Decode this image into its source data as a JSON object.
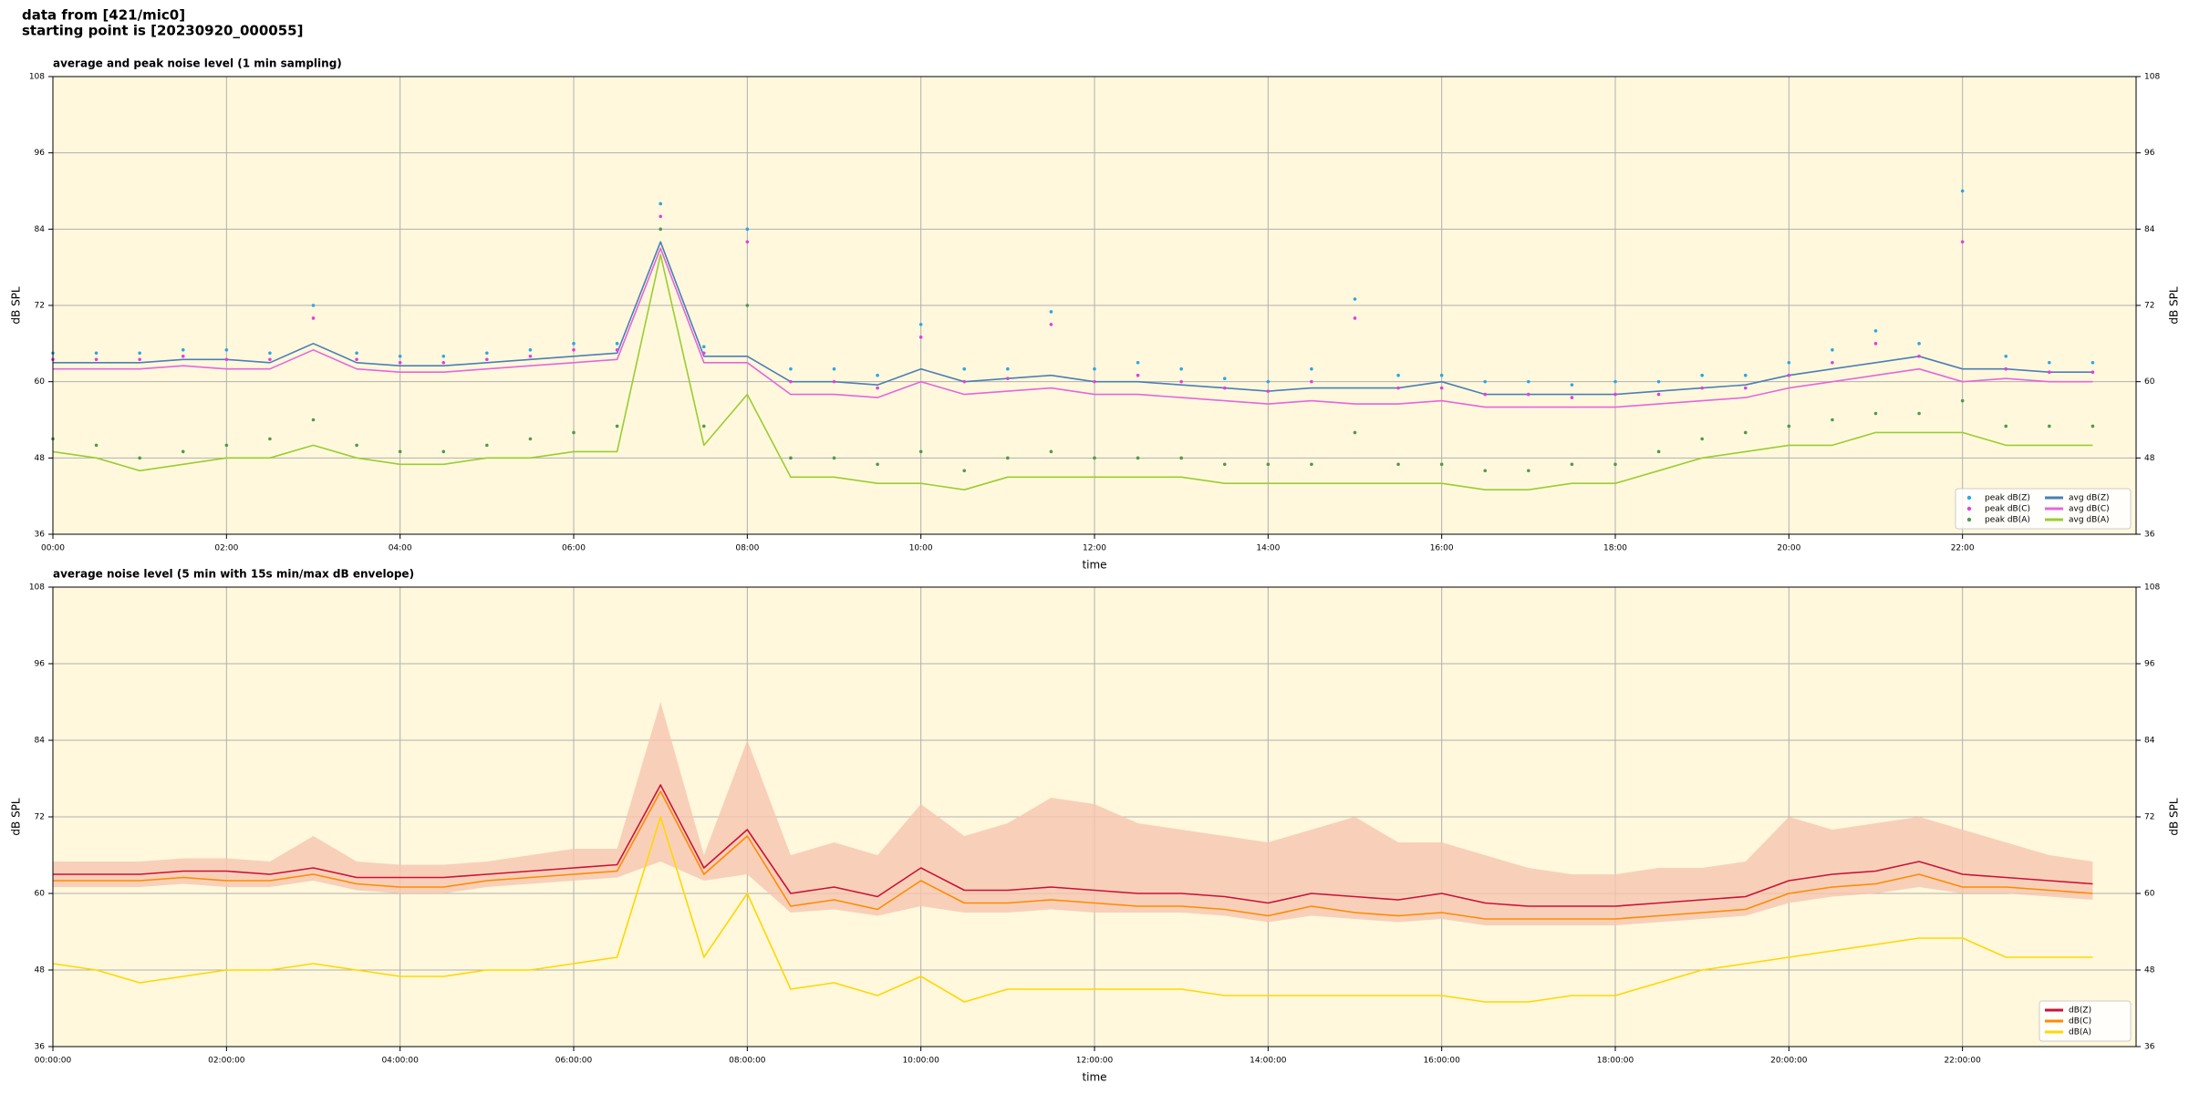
{
  "header": {
    "line1": "data from [421/mic0]",
    "line2": "starting point is [20230920_000055]"
  },
  "chart_data": [
    {
      "type": "line",
      "title": "average and peak noise level (1 min sampling)",
      "xlabel": "time",
      "ylabel": "dB SPL",
      "x": [
        0,
        0.5,
        1,
        1.5,
        2,
        2.5,
        3,
        3.5,
        4,
        4.5,
        5,
        5.5,
        6,
        6.5,
        7,
        7.5,
        8,
        8.5,
        9,
        9.5,
        10,
        10.5,
        11,
        11.5,
        12,
        12.5,
        13,
        13.5,
        14,
        14.5,
        15,
        15.5,
        16,
        16.5,
        17,
        17.5,
        18,
        18.5,
        19,
        19.5,
        20,
        20.5,
        21,
        21.5,
        22,
        22.5,
        23,
        23.5
      ],
      "xlim": [
        0,
        24
      ],
      "xticks": [
        {
          "value": 0,
          "label": "00:00"
        },
        {
          "value": 2,
          "label": "02:00"
        },
        {
          "value": 4,
          "label": "04:00"
        },
        {
          "value": 6,
          "label": "06:00"
        },
        {
          "value": 8,
          "label": "08:00"
        },
        {
          "value": 10,
          "label": "10:00"
        },
        {
          "value": 12,
          "label": "12:00"
        },
        {
          "value": 14,
          "label": "14:00"
        },
        {
          "value": 16,
          "label": "16:00"
        },
        {
          "value": 18,
          "label": "18:00"
        },
        {
          "value": 20,
          "label": "20:00"
        },
        {
          "value": 22,
          "label": "22:00"
        }
      ],
      "ylim": [
        36,
        108
      ],
      "yticks": [
        36,
        48,
        60,
        72,
        84,
        96,
        108
      ],
      "grid": true,
      "legend": "lower right",
      "legend_columns": 2,
      "series": [
        {
          "name": "peak dB(Z)",
          "color": "#2aa7e6",
          "mark": "point",
          "values": [
            64.5,
            64.5,
            64.5,
            65,
            65,
            64.5,
            72,
            64.5,
            64,
            64,
            64.5,
            65,
            66,
            66,
            88,
            65.5,
            84,
            62,
            62,
            61,
            69,
            62,
            62,
            71,
            62,
            63,
            62,
            60.5,
            60,
            62,
            73,
            61,
            61,
            60,
            60,
            59.5,
            60,
            60,
            61,
            61,
            63,
            65,
            68,
            66,
            90,
            64,
            63,
            63
          ]
        },
        {
          "name": "peak dB(C)",
          "color": "#e040e0",
          "mark": "point",
          "values": [
            63.5,
            63.5,
            63.5,
            64,
            63.5,
            63.5,
            70,
            63.5,
            63,
            63,
            63.5,
            64,
            65,
            65,
            86,
            64.5,
            82,
            60,
            60,
            59,
            67,
            60,
            60.5,
            69,
            60,
            61,
            60,
            59,
            58.5,
            60,
            70,
            59,
            59,
            58,
            58,
            57.5,
            58,
            58,
            59,
            59,
            61,
            63,
            66,
            64,
            82,
            62,
            61.5,
            61.5
          ]
        },
        {
          "name": "peak dB(A)",
          "color": "#4f9a4f",
          "mark": "point",
          "values": [
            51,
            50,
            48,
            49,
            50,
            51,
            54,
            50,
            49,
            49,
            50,
            51,
            52,
            53,
            84,
            53,
            72,
            48,
            48,
            47,
            49,
            46,
            48,
            49,
            48,
            48,
            48,
            47,
            47,
            47,
            52,
            47,
            47,
            46,
            46,
            47,
            47,
            49,
            51,
            52,
            53,
            54,
            55,
            55,
            57,
            53,
            53,
            53
          ]
        },
        {
          "name": "avg dB(Z)",
          "color": "#4a7fb5",
          "mark": "line",
          "values": [
            63,
            63,
            63,
            63.5,
            63.5,
            63,
            66,
            63,
            62.5,
            62.5,
            63,
            63.5,
            64,
            64.5,
            82,
            64,
            64,
            60,
            60,
            59.5,
            62,
            60,
            60.5,
            61,
            60,
            60,
            59.5,
            59,
            58.5,
            59,
            59,
            59,
            60,
            58,
            58,
            58,
            58,
            58.5,
            59,
            59.5,
            61,
            62,
            63,
            64,
            62,
            62,
            61.5,
            61.5
          ]
        },
        {
          "name": "avg dB(C)",
          "color": "#e466dc",
          "mark": "line",
          "values": [
            62,
            62,
            62,
            62.5,
            62,
            62,
            65,
            62,
            61.5,
            61.5,
            62,
            62.5,
            63,
            63.5,
            81,
            63,
            63,
            58,
            58,
            57.5,
            60,
            58,
            58.5,
            59,
            58,
            58,
            57.5,
            57,
            56.5,
            57,
            56.5,
            56.5,
            57,
            56,
            56,
            56,
            56,
            56.5,
            57,
            57.5,
            59,
            60,
            61,
            62,
            60,
            60.5,
            60,
            60
          ]
        },
        {
          "name": "avg dB(A)",
          "color": "#9acd32",
          "mark": "line",
          "values": [
            49,
            48,
            46,
            47,
            48,
            48,
            50,
            48,
            47,
            47,
            48,
            48,
            49,
            49,
            80,
            50,
            58,
            45,
            45,
            44,
            44,
            43,
            45,
            45,
            45,
            45,
            45,
            44,
            44,
            44,
            44,
            44,
            44,
            43,
            43,
            44,
            44,
            46,
            48,
            49,
            50,
            50,
            52,
            52,
            52,
            50,
            50,
            50
          ]
        }
      ]
    },
    {
      "type": "line",
      "title": "average noise level (5 min with 15s min/max dB envelope)",
      "xlabel": "time",
      "ylabel": "dB SPL",
      "x": [
        0,
        0.5,
        1,
        1.5,
        2,
        2.5,
        3,
        3.5,
        4,
        4.5,
        5,
        5.5,
        6,
        6.5,
        7,
        7.5,
        8,
        8.5,
        9,
        9.5,
        10,
        10.5,
        11,
        11.5,
        12,
        12.5,
        13,
        13.5,
        14,
        14.5,
        15,
        15.5,
        16,
        16.5,
        17,
        17.5,
        18,
        18.5,
        19,
        19.5,
        20,
        20.5,
        21,
        21.5,
        22,
        22.5,
        23,
        23.5
      ],
      "xlim": [
        0,
        24
      ],
      "xticks": [
        {
          "value": 0,
          "label": "00:00:00"
        },
        {
          "value": 2,
          "label": "02:00:00"
        },
        {
          "value": 4,
          "label": "04:00:00"
        },
        {
          "value": 6,
          "label": "06:00:00"
        },
        {
          "value": 8,
          "label": "08:00:00"
        },
        {
          "value": 10,
          "label": "10:00:00"
        },
        {
          "value": 12,
          "label": "12:00:00"
        },
        {
          "value": 14,
          "label": "14:00:00"
        },
        {
          "value": 16,
          "label": "16:00:00"
        },
        {
          "value": 18,
          "label": "18:00:00"
        },
        {
          "value": 20,
          "label": "20:00:00"
        },
        {
          "value": 22,
          "label": "22:00:00"
        }
      ],
      "ylim": [
        36,
        108
      ],
      "yticks": [
        36,
        48,
        60,
        72,
        84,
        96,
        108
      ],
      "grid": true,
      "legend": "lower right",
      "legend_columns": 1,
      "envelope": {
        "color": "#f6c6b0",
        "high": [
          65,
          65,
          65,
          65.5,
          65.5,
          65,
          69,
          65,
          64.5,
          64.5,
          65,
          66,
          67,
          67,
          90,
          66,
          84,
          66,
          68,
          66,
          74,
          69,
          71,
          75,
          74,
          71,
          70,
          69,
          68,
          70,
          72,
          68,
          68,
          66,
          64,
          63,
          63,
          64,
          64,
          65,
          72,
          70,
          71,
          72,
          70,
          68,
          66,
          65
        ],
        "low": [
          61,
          61,
          61,
          61.5,
          61,
          61,
          62,
          60.5,
          60,
          60,
          61,
          61.5,
          62,
          62.5,
          65,
          62,
          63,
          57,
          57.5,
          56.5,
          58,
          57,
          57,
          57.5,
          57,
          57,
          57,
          56.5,
          55.5,
          56.5,
          56,
          55.5,
          56,
          55,
          55,
          55,
          55,
          55.5,
          56,
          56.5,
          58.5,
          59.5,
          60,
          61,
          60,
          60,
          59.5,
          59
        ]
      },
      "series": [
        {
          "name": "dB(Z)",
          "color": "#cc1136",
          "mark": "line",
          "values": [
            63,
            63,
            63,
            63.5,
            63.5,
            63,
            64,
            62.5,
            62.5,
            62.5,
            63,
            63.5,
            64,
            64.5,
            77,
            64,
            70,
            60,
            61,
            59.5,
            64,
            60.5,
            60.5,
            61,
            60.5,
            60,
            60,
            59.5,
            58.5,
            60,
            59.5,
            59,
            60,
            58.5,
            58,
            58,
            58,
            58.5,
            59,
            59.5,
            62,
            63,
            63.5,
            65,
            63,
            62.5,
            62,
            61.5
          ]
        },
        {
          "name": "dB(C)",
          "color": "#ff8a00",
          "mark": "line",
          "values": [
            62,
            62,
            62,
            62.5,
            62,
            62,
            63,
            61.5,
            61,
            61,
            62,
            62.5,
            63,
            63.5,
            76,
            63,
            69,
            58,
            59,
            57.5,
            62,
            58.5,
            58.5,
            59,
            58.5,
            58,
            58,
            57.5,
            56.5,
            58,
            57,
            56.5,
            57,
            56,
            56,
            56,
            56,
            56.5,
            57,
            57.5,
            60,
            61,
            61.5,
            63,
            61,
            61,
            60.5,
            60
          ]
        },
        {
          "name": "dB(A)",
          "color": "#ffd700",
          "mark": "line",
          "values": [
            49,
            48,
            46,
            47,
            48,
            48,
            49,
            48,
            47,
            47,
            48,
            48,
            49,
            50,
            72,
            50,
            60,
            45,
            46,
            44,
            47,
            43,
            45,
            45,
            45,
            45,
            45,
            44,
            44,
            44,
            44,
            44,
            44,
            43,
            43,
            44,
            44,
            46,
            48,
            49,
            50,
            51,
            52,
            53,
            53,
            50,
            50,
            50
          ]
        }
      ]
    }
  ]
}
